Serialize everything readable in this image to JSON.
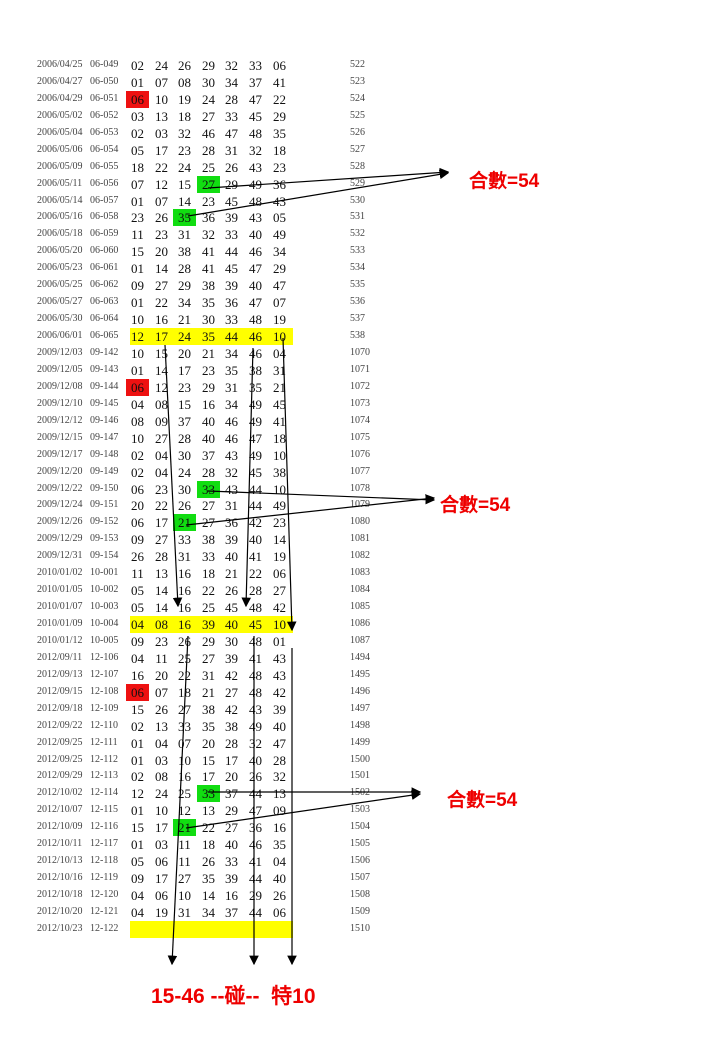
{
  "rows": [
    {
      "date": "2006/04/25",
      "issue": "06-049",
      "nums": [
        "02",
        "24",
        "26",
        "29",
        "32",
        "33",
        "06"
      ],
      "seq": "522"
    },
    {
      "date": "2006/04/27",
      "issue": "06-050",
      "nums": [
        "01",
        "07",
        "08",
        "30",
        "34",
        "37",
        "41"
      ],
      "seq": "523"
    },
    {
      "date": "2006/04/29",
      "issue": "06-051",
      "nums": [
        "06",
        "10",
        "19",
        "24",
        "28",
        "47",
        "22"
      ],
      "seq": "524",
      "red": [
        0
      ]
    },
    {
      "date": "2006/05/02",
      "issue": "06-052",
      "nums": [
        "03",
        "13",
        "18",
        "27",
        "33",
        "45",
        "29"
      ],
      "seq": "525"
    },
    {
      "date": "2006/05/04",
      "issue": "06-053",
      "nums": [
        "02",
        "03",
        "32",
        "46",
        "47",
        "48",
        "35"
      ],
      "seq": "526"
    },
    {
      "date": "2006/05/06",
      "issue": "06-054",
      "nums": [
        "05",
        "17",
        "23",
        "28",
        "31",
        "32",
        "18"
      ],
      "seq": "527"
    },
    {
      "date": "2006/05/09",
      "issue": "06-055",
      "nums": [
        "18",
        "22",
        "24",
        "25",
        "26",
        "43",
        "23"
      ],
      "seq": "528"
    },
    {
      "date": "2006/05/11",
      "issue": "06-056",
      "nums": [
        "07",
        "12",
        "15",
        "27",
        "29",
        "49",
        "36"
      ],
      "seq": "529",
      "green": [
        3
      ]
    },
    {
      "date": "2006/05/14",
      "issue": "06-057",
      "nums": [
        "01",
        "07",
        "14",
        "23",
        "45",
        "48",
        "43"
      ],
      "seq": "530"
    },
    {
      "date": "2006/05/16",
      "issue": "06-058",
      "nums": [
        "23",
        "26",
        "35",
        "36",
        "39",
        "43",
        "05"
      ],
      "seq": "531",
      "green": [
        2
      ]
    },
    {
      "date": "2006/05/18",
      "issue": "06-059",
      "nums": [
        "11",
        "23",
        "31",
        "32",
        "33",
        "40",
        "49"
      ],
      "seq": "532"
    },
    {
      "date": "2006/05/20",
      "issue": "06-060",
      "nums": [
        "15",
        "20",
        "38",
        "41",
        "44",
        "46",
        "34"
      ],
      "seq": "533"
    },
    {
      "date": "2006/05/23",
      "issue": "06-061",
      "nums": [
        "01",
        "14",
        "28",
        "41",
        "45",
        "47",
        "29"
      ],
      "seq": "534"
    },
    {
      "date": "2006/05/25",
      "issue": "06-062",
      "nums": [
        "09",
        "27",
        "29",
        "38",
        "39",
        "40",
        "47"
      ],
      "seq": "535"
    },
    {
      "date": "2006/05/27",
      "issue": "06-063",
      "nums": [
        "01",
        "22",
        "34",
        "35",
        "36",
        "47",
        "07"
      ],
      "seq": "536"
    },
    {
      "date": "2006/05/30",
      "issue": "06-064",
      "nums": [
        "10",
        "16",
        "21",
        "30",
        "33",
        "48",
        "19"
      ],
      "seq": "537"
    },
    {
      "date": "2006/06/01",
      "issue": "06-065",
      "nums": [
        "12",
        "17",
        "24",
        "35",
        "44",
        "46",
        "10"
      ],
      "seq": "538",
      "yellow": true
    },
    {
      "date": "2009/12/03",
      "issue": "09-142",
      "nums": [
        "10",
        "15",
        "20",
        "21",
        "34",
        "46",
        "04"
      ],
      "seq": "1070"
    },
    {
      "date": "2009/12/05",
      "issue": "09-143",
      "nums": [
        "01",
        "14",
        "17",
        "23",
        "35",
        "38",
        "31"
      ],
      "seq": "1071"
    },
    {
      "date": "2009/12/08",
      "issue": "09-144",
      "nums": [
        "06",
        "12",
        "23",
        "29",
        "31",
        "35",
        "21"
      ],
      "seq": "1072",
      "red": [
        0
      ]
    },
    {
      "date": "2009/12/10",
      "issue": "09-145",
      "nums": [
        "04",
        "08",
        "15",
        "16",
        "34",
        "49",
        "45"
      ],
      "seq": "1073"
    },
    {
      "date": "2009/12/12",
      "issue": "09-146",
      "nums": [
        "08",
        "09",
        "37",
        "40",
        "46",
        "49",
        "41"
      ],
      "seq": "1074"
    },
    {
      "date": "2009/12/15",
      "issue": "09-147",
      "nums": [
        "10",
        "27",
        "28",
        "40",
        "46",
        "47",
        "18"
      ],
      "seq": "1075"
    },
    {
      "date": "2009/12/17",
      "issue": "09-148",
      "nums": [
        "02",
        "04",
        "30",
        "37",
        "43",
        "49",
        "10"
      ],
      "seq": "1076"
    },
    {
      "date": "2009/12/20",
      "issue": "09-149",
      "nums": [
        "02",
        "04",
        "24",
        "28",
        "32",
        "45",
        "38"
      ],
      "seq": "1077"
    },
    {
      "date": "2009/12/22",
      "issue": "09-150",
      "nums": [
        "06",
        "23",
        "30",
        "33",
        "43",
        "44",
        "10"
      ],
      "seq": "1078",
      "green": [
        3
      ]
    },
    {
      "date": "2009/12/24",
      "issue": "09-151",
      "nums": [
        "20",
        "22",
        "26",
        "27",
        "31",
        "44",
        "49"
      ],
      "seq": "1079"
    },
    {
      "date": "2009/12/26",
      "issue": "09-152",
      "nums": [
        "06",
        "17",
        "21",
        "27",
        "36",
        "42",
        "23"
      ],
      "seq": "1080",
      "green": [
        2
      ]
    },
    {
      "date": "2009/12/29",
      "issue": "09-153",
      "nums": [
        "09",
        "27",
        "33",
        "38",
        "39",
        "40",
        "14"
      ],
      "seq": "1081"
    },
    {
      "date": "2009/12/31",
      "issue": "09-154",
      "nums": [
        "26",
        "28",
        "31",
        "33",
        "40",
        "41",
        "19"
      ],
      "seq": "1082"
    },
    {
      "date": "2010/01/02",
      "issue": "10-001",
      "nums": [
        "11",
        "13",
        "16",
        "18",
        "21",
        "22",
        "06"
      ],
      "seq": "1083"
    },
    {
      "date": "2010/01/05",
      "issue": "10-002",
      "nums": [
        "05",
        "14",
        "16",
        "22",
        "26",
        "28",
        "27"
      ],
      "seq": "1084"
    },
    {
      "date": "2010/01/07",
      "issue": "10-003",
      "nums": [
        "05",
        "14",
        "16",
        "25",
        "45",
        "48",
        "42"
      ],
      "seq": "1085"
    },
    {
      "date": "2010/01/09",
      "issue": "10-004",
      "nums": [
        "04",
        "08",
        "16",
        "39",
        "40",
        "45",
        "10"
      ],
      "seq": "1086",
      "yellow": true
    },
    {
      "date": "2010/01/12",
      "issue": "10-005",
      "nums": [
        "09",
        "23",
        "26",
        "29",
        "30",
        "48",
        "01"
      ],
      "seq": "1087"
    },
    {
      "date": "2012/09/11",
      "issue": "12-106",
      "nums": [
        "04",
        "11",
        "25",
        "27",
        "39",
        "41",
        "43"
      ],
      "seq": "1494"
    },
    {
      "date": "2012/09/13",
      "issue": "12-107",
      "nums": [
        "16",
        "20",
        "22",
        "31",
        "42",
        "48",
        "43"
      ],
      "seq": "1495"
    },
    {
      "date": "2012/09/15",
      "issue": "12-108",
      "nums": [
        "06",
        "07",
        "18",
        "21",
        "27",
        "48",
        "42"
      ],
      "seq": "1496",
      "red": [
        0
      ]
    },
    {
      "date": "2012/09/18",
      "issue": "12-109",
      "nums": [
        "15",
        "26",
        "27",
        "38",
        "42",
        "43",
        "39"
      ],
      "seq": "1497"
    },
    {
      "date": "2012/09/22",
      "issue": "12-110",
      "nums": [
        "02",
        "13",
        "33",
        "35",
        "38",
        "49",
        "40"
      ],
      "seq": "1498"
    },
    {
      "date": "2012/09/25",
      "issue": "12-111",
      "nums": [
        "01",
        "04",
        "07",
        "20",
        "28",
        "32",
        "47"
      ],
      "seq": "1499"
    },
    {
      "date": "2012/09/25",
      "issue": "12-112",
      "nums": [
        "01",
        "03",
        "10",
        "15",
        "17",
        "40",
        "28"
      ],
      "seq": "1500"
    },
    {
      "date": "2012/09/29",
      "issue": "12-113",
      "nums": [
        "02",
        "08",
        "16",
        "17",
        "20",
        "26",
        "32"
      ],
      "seq": "1501"
    },
    {
      "date": "2012/10/02",
      "issue": "12-114",
      "nums": [
        "12",
        "24",
        "25",
        "33",
        "37",
        "44",
        "13"
      ],
      "seq": "1502",
      "green": [
        3
      ]
    },
    {
      "date": "2012/10/07",
      "issue": "12-115",
      "nums": [
        "01",
        "10",
        "12",
        "13",
        "29",
        "47",
        "09"
      ],
      "seq": "1503"
    },
    {
      "date": "2012/10/09",
      "issue": "12-116",
      "nums": [
        "15",
        "17",
        "21",
        "22",
        "27",
        "36",
        "16"
      ],
      "seq": "1504",
      "green": [
        2
      ]
    },
    {
      "date": "2012/10/11",
      "issue": "12-117",
      "nums": [
        "01",
        "03",
        "11",
        "18",
        "40",
        "46",
        "35"
      ],
      "seq": "1505"
    },
    {
      "date": "2012/10/13",
      "issue": "12-118",
      "nums": [
        "05",
        "06",
        "11",
        "26",
        "33",
        "41",
        "04"
      ],
      "seq": "1506"
    },
    {
      "date": "2012/10/16",
      "issue": "12-119",
      "nums": [
        "09",
        "17",
        "27",
        "35",
        "39",
        "44",
        "40"
      ],
      "seq": "1507"
    },
    {
      "date": "2012/10/18",
      "issue": "12-120",
      "nums": [
        "04",
        "06",
        "10",
        "14",
        "16",
        "29",
        "26"
      ],
      "seq": "1508"
    },
    {
      "date": "2012/10/20",
      "issue": "12-121",
      "nums": [
        "04",
        "19",
        "31",
        "34",
        "37",
        "44",
        "06"
      ],
      "seq": "1509"
    },
    {
      "date": "2012/10/23",
      "issue": "12-122",
      "nums": [],
      "seq": "1510",
      "yellow": true
    }
  ],
  "annotations": {
    "sum_label_1": "合數=54",
    "sum_label_2": "合數=54",
    "sum_label_3": "合數=54",
    "bottom_note": "15-46 --碰--  特10"
  },
  "colors": {
    "highlight_yellow": "#ffff00",
    "highlight_red": "#ee1111",
    "highlight_green": "#11dd11",
    "annotation_red": "#ee0000"
  }
}
